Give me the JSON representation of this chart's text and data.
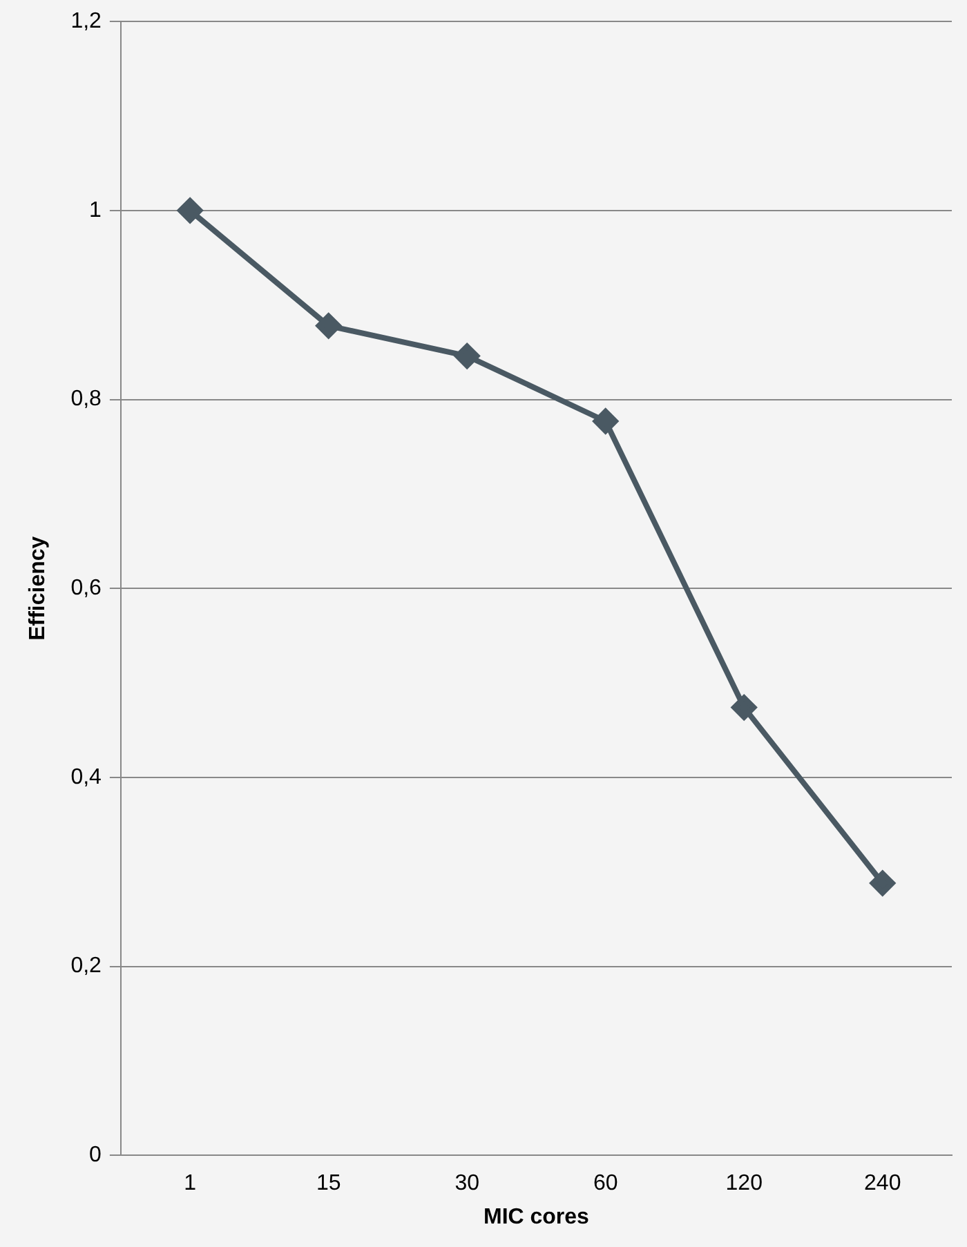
{
  "chart_data": {
    "type": "line",
    "xlabel": "MIC cores",
    "ylabel": "Efficiency",
    "categories": [
      "1",
      "15",
      "30",
      "60",
      "120",
      "240"
    ],
    "series": [
      {
        "color": "#4a5963",
        "values": [
          1.0,
          0.878,
          0.846,
          0.777,
          0.474,
          0.288
        ]
      }
    ],
    "ylim": [
      0,
      1.2
    ],
    "yticks": [
      0,
      {
        "value": 0.2,
        "label": "0,2"
      },
      {
        "value": 0.4,
        "label": "0,4"
      },
      {
        "value": 0.6,
        "label": "0,6"
      },
      {
        "value": 0.8,
        "label": "0,8"
      },
      1,
      {
        "value": 1.2,
        "label": "1,2"
      }
    ],
    "grid": "y",
    "legend": false,
    "marker": "diamond",
    "line_style": "solid"
  }
}
